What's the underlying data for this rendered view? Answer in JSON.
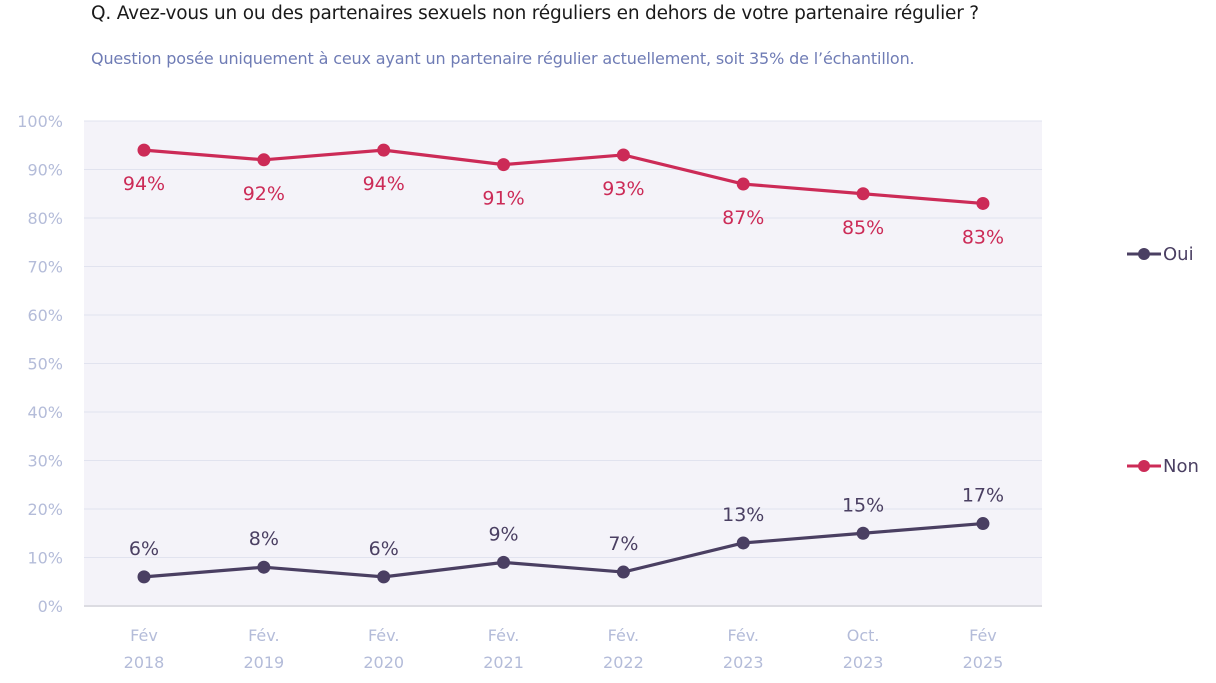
{
  "header": {
    "title": "Q. Avez-vous un ou des partenaires sexuels non réguliers en dehors de votre partenaire régulier ?",
    "subtitle": "Question posée uniquement à ceux ayant un partenaire régulier actuellement, soit 35% de l’échantillon."
  },
  "chart_data": {
    "type": "line",
    "title": "Q. Avez-vous un ou des partenaires sexuels non réguliers en dehors de votre partenaire régulier ?",
    "subtitle": "Question posée uniquement à ceux ayant un partenaire régulier actuellement, soit 35% de l’échantillon.",
    "xlabel": "",
    "ylabel": "",
    "categories": [
      [
        "Fév",
        "2018"
      ],
      [
        "Fév.",
        "2019"
      ],
      [
        "Fév.",
        "2020"
      ],
      [
        "Fév.",
        "2021"
      ],
      [
        "Fév.",
        "2022"
      ],
      [
        "Fév.",
        "2023"
      ],
      [
        "Oct.",
        "2023"
      ],
      [
        "Fév",
        "2025"
      ]
    ],
    "ylim": [
      0,
      100
    ],
    "yticks": [
      0,
      10,
      20,
      30,
      40,
      50,
      60,
      70,
      80,
      90,
      100
    ],
    "ytick_labels": [
      "0%",
      "10%",
      "20%",
      "30%",
      "40%",
      "50%",
      "60%",
      "70%",
      "80%",
      "90%",
      "100%"
    ],
    "grid": true,
    "legend_position": "right",
    "series": [
      {
        "name": "Oui",
        "color": "#4a3f62",
        "values": [
          6,
          8,
          6,
          9,
          7,
          13,
          15,
          17
        ],
        "labels": [
          "6%",
          "8%",
          "6%",
          "9%",
          "7%",
          "13%",
          "15%",
          "17%"
        ],
        "label_position": "above"
      },
      {
        "name": "Non",
        "color": "#cc2b57",
        "values": [
          94,
          92,
          94,
          91,
          93,
          87,
          85,
          83
        ],
        "labels": [
          "94%",
          "92%",
          "94%",
          "91%",
          "93%",
          "87%",
          "85%",
          "83%"
        ],
        "label_position": "below"
      }
    ],
    "colors": {
      "plot_background": "#f4f3f9",
      "gridline": "#e1e3ef",
      "axis_text": "#b4bcd9"
    }
  }
}
